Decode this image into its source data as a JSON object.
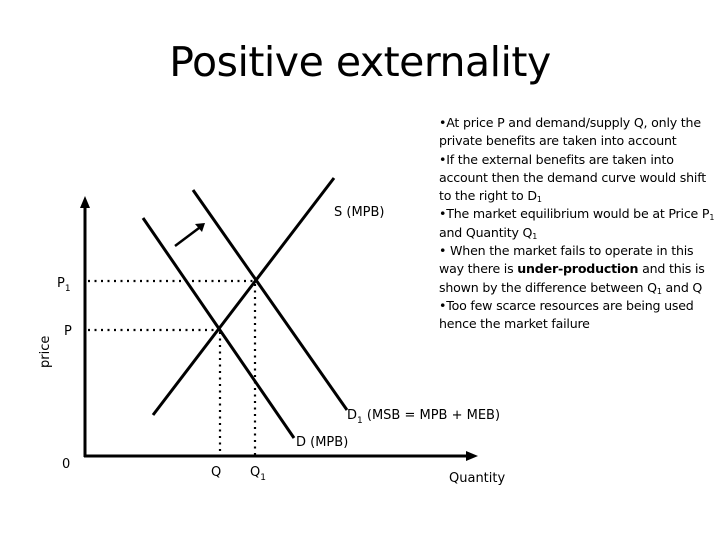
{
  "slide": {
    "title": "Positive externality"
  },
  "bullets": [
    {
      "parts": [
        {
          "t": "•At price P and demand/supply Q, only the private benefits are taken into account"
        }
      ]
    },
    {
      "parts": [
        {
          "t": "•If the external benefits are taken into account then the demand curve would shift to the right to D"
        },
        {
          "sub": "1"
        }
      ]
    },
    {
      "parts": [
        {
          "t": "•The market equilibrium would be at Price P"
        },
        {
          "sub": "1"
        },
        {
          "t": " and Quantity Q"
        },
        {
          "sub": "1"
        }
      ]
    },
    {
      "parts": [
        {
          "t": "• When the market fails to operate in this way there is "
        },
        {
          "b": "under-production"
        },
        {
          "t": " and this is shown by the difference between Q"
        },
        {
          "sub": "1"
        },
        {
          "t": " and Q"
        }
      ]
    },
    {
      "parts": [
        {
          "t": "•Too few scarce resources are being used hence the market failure"
        }
      ]
    }
  ],
  "diagram": {
    "y_axis_label": "price",
    "x_axis_label": "Quantity",
    "origin_label": "0",
    "price_labels": {
      "p1": "P",
      "p1_sub": "1",
      "p": "P"
    },
    "quantity_labels": {
      "q": "Q",
      "q1": "Q",
      "q1_sub": "1"
    },
    "curves": {
      "supply": "S (MPB)",
      "demand": "D (MPB)",
      "demand_shifted_prefix": "D",
      "demand_shifted_sub": "1",
      "demand_shifted_suffix": " (MSB = MPB + MEB)"
    },
    "colors": {
      "line": "#000000",
      "background": "#ffffff"
    }
  }
}
